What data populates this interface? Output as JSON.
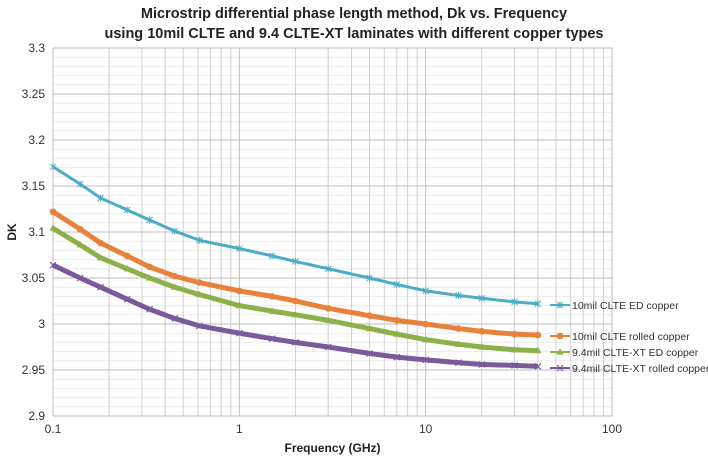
{
  "chart_data": {
    "type": "line",
    "title": [
      "Microstrip differential phase length method, Dk vs. Frequency",
      "using 10mil CLTE and 9.4 CLTE-XT laminates with different copper types"
    ],
    "xlabel": "Frequency (GHz)",
    "ylabel": "DK",
    "xscale": "log",
    "xlim": [
      0.1,
      100
    ],
    "ylim": [
      2.9,
      3.3
    ],
    "xticks": [
      "0.1",
      "1",
      "10",
      "100"
    ],
    "yticks": [
      "2.9",
      "2.95",
      "3",
      "3.05",
      "3.1",
      "3.15",
      "3.2",
      "3.25",
      "3.3"
    ],
    "grid": true,
    "legend_position": "right",
    "series": [
      {
        "name": "10mil CLTE ED copper",
        "color": "#4bacc6",
        "marker": "star",
        "x": [
          0.1,
          0.14,
          0.18,
          0.25,
          0.33,
          0.45,
          0.61,
          1,
          1.5,
          2,
          3,
          5,
          7,
          10,
          15,
          20,
          30,
          40
        ],
        "y": [
          3.171,
          3.152,
          3.137,
          3.124,
          3.113,
          3.101,
          3.091,
          3.082,
          3.074,
          3.068,
          3.06,
          3.05,
          3.043,
          3.036,
          3.031,
          3.028,
          3.024,
          3.022
        ]
      },
      {
        "name": "10mil CLTE rolled copper",
        "color": "#e8823a",
        "marker": "circle",
        "x": [
          0.1,
          0.14,
          0.18,
          0.25,
          0.33,
          0.45,
          0.61,
          1,
          1.5,
          2,
          3,
          5,
          7,
          10,
          15,
          20,
          30,
          40
        ],
        "y": [
          3.122,
          3.103,
          3.088,
          3.074,
          3.062,
          3.052,
          3.045,
          3.036,
          3.03,
          3.025,
          3.017,
          3.009,
          3.004,
          3.0,
          2.995,
          2.992,
          2.989,
          2.988
        ]
      },
      {
        "name": "9.4mil CLTE-XT ED copper",
        "color": "#8cb04a",
        "marker": "triangle",
        "x": [
          0.1,
          0.14,
          0.18,
          0.25,
          0.33,
          0.45,
          0.61,
          1,
          1.5,
          2,
          3,
          5,
          7,
          10,
          15,
          20,
          30,
          40
        ],
        "y": [
          3.104,
          3.086,
          3.072,
          3.06,
          3.05,
          3.04,
          3.032,
          3.02,
          3.014,
          3.01,
          3.004,
          2.995,
          2.989,
          2.983,
          2.978,
          2.975,
          2.972,
          2.971
        ]
      },
      {
        "name": "9.4mil CLTE-XT rolled copper",
        "color": "#7a5a9a",
        "marker": "x",
        "x": [
          0.1,
          0.14,
          0.18,
          0.25,
          0.33,
          0.45,
          0.61,
          1,
          1.5,
          2,
          3,
          5,
          7,
          10,
          15,
          20,
          30,
          40
        ],
        "y": [
          3.064,
          3.05,
          3.04,
          3.027,
          3.016,
          3.006,
          2.998,
          2.99,
          2.984,
          2.98,
          2.975,
          2.968,
          2.964,
          2.961,
          2.958,
          2.956,
          2.955,
          2.954
        ]
      }
    ]
  }
}
